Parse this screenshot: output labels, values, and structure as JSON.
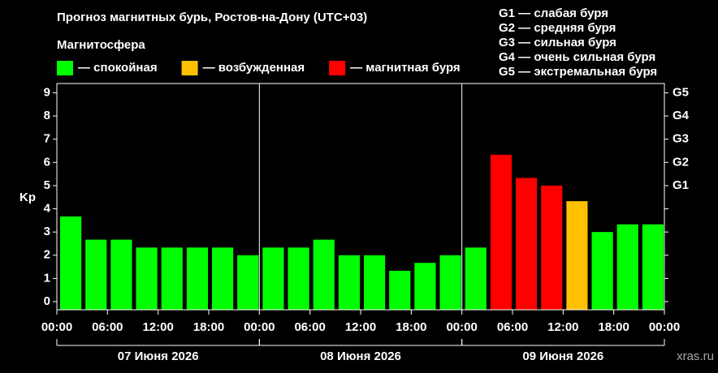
{
  "chart_data": {
    "type": "bar",
    "title": "Прогноз магнитных бурь, Ростов-на-Дону (UTC+03)",
    "ylabel": "Kp",
    "watermark": "xras.ru",
    "legend": {
      "title": "Магнитосфера",
      "items": [
        {
          "name": "— спокойная",
          "color": "#00ff00"
        },
        {
          "name": "— возбужденная",
          "color": "#ffc000"
        },
        {
          "name": "— магнитная буря",
          "color": "#ff0000"
        }
      ]
    },
    "scale_notes": [
      "G1 — слабая буря",
      "G2 — средняя буря",
      "G3 — сильная буря",
      "G4 — очень сильная буря",
      "G5 — экстремальная буря"
    ],
    "x": [
      0,
      3,
      6,
      9,
      12,
      15,
      18,
      21,
      24,
      27,
      30,
      33,
      36,
      39,
      42,
      45,
      48,
      51,
      54,
      57,
      60,
      63,
      66,
      69
    ],
    "bar_width": 3,
    "values": [
      3.67,
      2.67,
      2.67,
      2.33,
      2.33,
      2.33,
      2.33,
      2.0,
      2.33,
      2.33,
      2.67,
      2.0,
      2.0,
      1.33,
      1.67,
      2.0,
      2.33,
      6.33,
      5.33,
      5.0,
      4.33,
      3.0,
      3.33,
      3.33
    ],
    "colors": [
      "#00ff00",
      "#00ff00",
      "#00ff00",
      "#00ff00",
      "#00ff00",
      "#00ff00",
      "#00ff00",
      "#00ff00",
      "#00ff00",
      "#00ff00",
      "#00ff00",
      "#00ff00",
      "#00ff00",
      "#00ff00",
      "#00ff00",
      "#00ff00",
      "#00ff00",
      "#ff0000",
      "#ff0000",
      "#ff0000",
      "#ffc000",
      "#00ff00",
      "#00ff00",
      "#00ff00"
    ],
    "xlim": [
      0,
      72
    ],
    "xticks": [
      {
        "value": 0,
        "label": "00:00"
      },
      {
        "value": 6,
        "label": "06:00"
      },
      {
        "value": 12,
        "label": "12:00"
      },
      {
        "value": 18,
        "label": "18:00"
      },
      {
        "value": 24,
        "label": "00:00"
      },
      {
        "value": 30,
        "label": "06:00"
      },
      {
        "value": 36,
        "label": "12:00"
      },
      {
        "value": 42,
        "label": "18:00"
      },
      {
        "value": 48,
        "label": "00:00"
      },
      {
        "value": 54,
        "label": "06:00"
      },
      {
        "value": 60,
        "label": "12:00"
      },
      {
        "value": 66,
        "label": "18:00"
      },
      {
        "value": 72,
        "label": "00:00"
      }
    ],
    "days": [
      {
        "start": 0,
        "end": 24,
        "label": "07 Июня 2026"
      },
      {
        "start": 24,
        "end": 48,
        "label": "08 Июня 2026"
      },
      {
        "start": 48,
        "end": 72,
        "label": "09 Июня 2026"
      }
    ],
    "ylim": [
      -0.35,
      9.4
    ],
    "yticks": [
      0,
      1,
      2,
      3,
      4,
      5,
      6,
      7,
      8,
      9
    ],
    "y2lim": [
      -0.35,
      9.4
    ],
    "y2ticks": [
      {
        "value": 5,
        "label": "G1"
      },
      {
        "value": 6,
        "label": "G2"
      },
      {
        "value": 7,
        "label": "G3"
      },
      {
        "value": 8,
        "label": "G4"
      },
      {
        "value": 9,
        "label": "G5"
      }
    ]
  }
}
